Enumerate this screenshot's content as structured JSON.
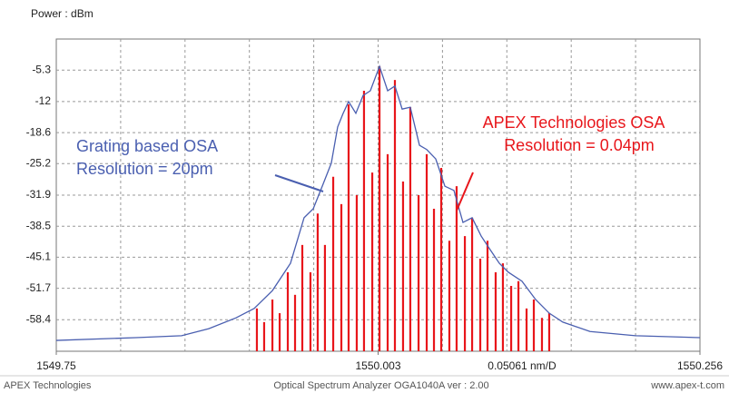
{
  "chart_data": {
    "type": "line",
    "y_label": "Power : dBm",
    "scale_label": "0.05061 nm/D",
    "grid_divisions": 10,
    "grid": true,
    "xlim": [
      1549.75,
      1550.256
    ],
    "xticks": [
      1549.75,
      1550.003,
      1550.256
    ],
    "ylim": [
      -65.1,
      1.3
    ],
    "yticks": [
      -5.3,
      -12,
      -18.6,
      -25.2,
      -31.9,
      -38.5,
      -45.1,
      -51.7,
      -58.4
    ],
    "series": [
      {
        "name": "Grating based OSA",
        "color": "#4a5fb0",
        "style": "line",
        "x": [
          1549.75,
          1549.8128,
          1549.8485,
          1549.8699,
          1549.8913,
          1549.9056,
          1549.9199,
          1549.9341,
          1549.9448,
          1549.952,
          1549.9591,
          1549.9662,
          1549.9712,
          1549.9755,
          1549.9798,
          1549.9855,
          1549.9912,
          1549.9969,
          1550.0041,
          1550.0105,
          1550.0162,
          1550.0219,
          1550.0283,
          1550.0355,
          1550.0412,
          1550.0483,
          1550.0555,
          1550.0626,
          1550.0697,
          1550.0769,
          1550.084,
          1550.0911,
          1550.0983,
          1550.1054,
          1550.1161,
          1550.1268,
          1550.1375,
          1550.1482,
          1550.1696,
          1550.2053,
          1550.256
        ],
        "values": [
          -62.8,
          -62.2,
          -61.8,
          -60.3,
          -58.0,
          -56.0,
          -52.2,
          -46.4,
          -36.7,
          -34.8,
          -30.0,
          -25.1,
          -17.4,
          -14.5,
          -12.0,
          -14.5,
          -10.7,
          -9.7,
          -4.5,
          -9.7,
          -8.7,
          -13.6,
          -13.2,
          -21.3,
          -22.2,
          -24.2,
          -30.0,
          -30.9,
          -37.7,
          -36.7,
          -40.6,
          -43.5,
          -46.4,
          -48.3,
          -50.2,
          -54.1,
          -57.0,
          -58.9,
          -60.9,
          -61.8,
          -62.2
        ]
      },
      {
        "name": "APEX Technologies OSA",
        "color": "#e8161b",
        "style": "stem",
        "x": [
          1549.9077,
          1549.9134,
          1549.9199,
          1549.9256,
          1549.932,
          1549.9377,
          1549.9434,
          1549.9498,
          1549.9555,
          1549.9612,
          1549.9677,
          1549.9741,
          1549.9798,
          1549.9862,
          1549.9919,
          1549.9984,
          1550.0041,
          1550.0105,
          1550.0162,
          1550.0226,
          1550.0283,
          1550.0348,
          1550.0412,
          1550.0469,
          1550.0526,
          1550.059,
          1550.0647,
          1550.0712,
          1550.0769,
          1550.0833,
          1550.089,
          1550.0954,
          1550.1011,
          1550.1076,
          1550.1133,
          1550.1197,
          1550.1254,
          1550.1318,
          1550.1375
        ],
        "values": [
          -56.0,
          -58.9,
          -54.1,
          -57.0,
          -48.3,
          -53.1,
          -42.5,
          -48.3,
          -35.8,
          -42.5,
          -28.0,
          -33.8,
          -12.6,
          -31.9,
          -9.7,
          -27.1,
          -4.5,
          -23.2,
          -7.4,
          -29.0,
          -13.2,
          -31.9,
          -23.2,
          -34.8,
          -26.1,
          -41.6,
          -30.0,
          -40.6,
          -36.7,
          -45.4,
          -41.6,
          -48.3,
          -46.4,
          -51.2,
          -50.2,
          -56.0,
          -54.1,
          -58.0,
          -57.0
        ]
      }
    ],
    "annotations": [
      {
        "lines": [
          "Grating based OSA",
          "Resolution = 20pm"
        ]
      },
      {
        "lines": [
          "APEX Technologies OSA",
          "Resolution = 0.04pm"
        ]
      }
    ],
    "footer": [
      "APEX Technologies",
      "Optical Spectrum Analyzer OGA1040A  ver : 2.00",
      "www.apex-t.com"
    ]
  }
}
